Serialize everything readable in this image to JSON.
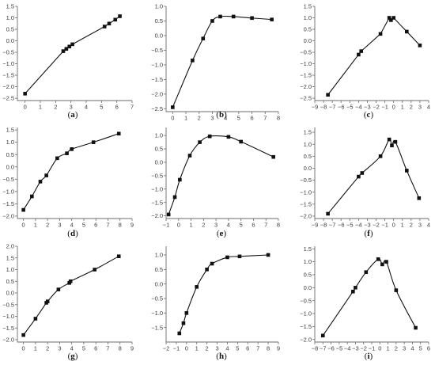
{
  "figure": {
    "background": "#ffffff",
    "ink": "#111111",
    "axis_color": "#6b6b6b"
  },
  "chart_data": [
    {
      "panel": "(a)",
      "label_letter": "a",
      "type": "line",
      "xlim": [
        -0.5,
        7
      ],
      "ylim": [
        -2.6,
        1.5
      ],
      "xticks": [
        0,
        1,
        2,
        3,
        4,
        5,
        6,
        7
      ],
      "yticks": [
        -2.5,
        -2.0,
        -1.5,
        -1.0,
        -0.5,
        0.0,
        0.5,
        1.0,
        1.5
      ],
      "grid": false,
      "smooth": false,
      "points": [
        [
          0,
          -2.3
        ],
        [
          2.5,
          -0.45
        ],
        [
          2.7,
          -0.35
        ],
        [
          2.9,
          -0.25
        ],
        [
          3.1,
          -0.15
        ],
        [
          5.2,
          0.62
        ],
        [
          5.5,
          0.75
        ],
        [
          5.9,
          0.92
        ],
        [
          6.2,
          1.07
        ]
      ]
    },
    {
      "panel": "(b)",
      "label_letter": "b",
      "type": "line",
      "xlim": [
        -0.5,
        8
      ],
      "ylim": [
        -2.6,
        1.0
      ],
      "xticks": [
        0,
        1,
        2,
        3,
        4,
        5,
        6,
        7,
        8
      ],
      "yticks": [
        -2.5,
        -2.0,
        -1.5,
        -1.0,
        -0.5,
        0.0,
        0.5,
        1.0
      ],
      "grid": false,
      "smooth": true,
      "points": [
        [
          0,
          -2.45
        ],
        [
          1.5,
          -0.85
        ],
        [
          2.3,
          -0.1
        ],
        [
          3.0,
          0.5
        ],
        [
          3.6,
          0.65
        ],
        [
          4.6,
          0.65
        ],
        [
          6.0,
          0.6
        ],
        [
          7.5,
          0.55
        ]
      ]
    },
    {
      "panel": "(c)",
      "label_letter": "c",
      "type": "line",
      "xlim": [
        -9,
        4
      ],
      "ylim": [
        -2.6,
        1.5
      ],
      "xticks": [
        -9,
        -8,
        -7,
        -6,
        -5,
        -4,
        -3,
        -2,
        -1,
        0,
        1,
        2,
        3,
        4
      ],
      "yticks": [
        -2.5,
        -2.0,
        -1.5,
        -1.0,
        -0.5,
        0.0,
        0.5,
        1.0,
        1.5
      ],
      "grid": false,
      "smooth": false,
      "points": [
        [
          -7.5,
          -2.35
        ],
        [
          -4.0,
          -0.6
        ],
        [
          -3.7,
          -0.45
        ],
        [
          -1.5,
          0.3
        ],
        [
          -0.5,
          1.0
        ],
        [
          -0.3,
          0.9
        ],
        [
          0.0,
          1.0
        ],
        [
          1.5,
          0.4
        ],
        [
          3.0,
          -0.2
        ]
      ]
    },
    {
      "panel": "(d)",
      "label_letter": "d",
      "type": "line",
      "xlim": [
        -0.5,
        9
      ],
      "ylim": [
        -2.1,
        1.6
      ],
      "xticks": [
        0,
        1,
        2,
        3,
        4,
        5,
        6,
        7,
        8,
        9
      ],
      "yticks": [
        -2.0,
        -1.5,
        -1.0,
        -0.5,
        0.0,
        0.5,
        1.0,
        1.5
      ],
      "grid": false,
      "smooth": true,
      "points": [
        [
          0,
          -1.75
        ],
        [
          0.7,
          -1.2
        ],
        [
          1.4,
          -0.6
        ],
        [
          1.9,
          -0.35
        ],
        [
          2.8,
          0.35
        ],
        [
          3.6,
          0.55
        ],
        [
          4.0,
          0.72
        ],
        [
          5.8,
          1.0
        ],
        [
          7.9,
          1.35
        ]
      ]
    },
    {
      "panel": "(e)",
      "label_letter": "e",
      "type": "line",
      "xlim": [
        -1,
        8
      ],
      "ylim": [
        -2.1,
        1.3
      ],
      "xticks": [
        -1,
        0,
        1,
        2,
        3,
        4,
        5,
        6,
        7,
        8
      ],
      "yticks": [
        -2.0,
        -1.5,
        -1.0,
        -0.5,
        0.0,
        0.5,
        1.0
      ],
      "grid": false,
      "smooth": true,
      "points": [
        [
          -0.8,
          -1.95
        ],
        [
          -0.3,
          -1.3
        ],
        [
          0.1,
          -0.65
        ],
        [
          0.9,
          0.25
        ],
        [
          1.7,
          0.75
        ],
        [
          2.5,
          0.97
        ],
        [
          4.0,
          0.95
        ],
        [
          5.0,
          0.77
        ],
        [
          7.6,
          0.2
        ]
      ]
    },
    {
      "panel": "(f)",
      "label_letter": "f",
      "type": "line",
      "xlim": [
        -9,
        4
      ],
      "ylim": [
        -2.1,
        1.7
      ],
      "xticks": [
        -9,
        -8,
        -7,
        -6,
        -5,
        -4,
        -3,
        -2,
        -1,
        0,
        1,
        2,
        3,
        4
      ],
      "yticks": [
        -2.0,
        -1.5,
        -1.0,
        -0.5,
        0.0,
        0.5,
        1.0,
        1.5
      ],
      "grid": false,
      "smooth": true,
      "points": [
        [
          -7.5,
          -1.9
        ],
        [
          -4.0,
          -0.35
        ],
        [
          -3.6,
          -0.2
        ],
        [
          -1.5,
          0.5
        ],
        [
          -0.5,
          1.2
        ],
        [
          -0.2,
          0.95
        ],
        [
          0.2,
          1.1
        ],
        [
          1.5,
          -0.1
        ],
        [
          2.9,
          -1.25
        ]
      ]
    },
    {
      "panel": "(g)",
      "label_letter": "g",
      "type": "line",
      "xlim": [
        -0.5,
        9
      ],
      "ylim": [
        -2.1,
        2.0
      ],
      "xticks": [
        0,
        1,
        2,
        3,
        4,
        5,
        6,
        7,
        8,
        9
      ],
      "yticks": [
        -2.0,
        -1.5,
        -1.0,
        -0.5,
        0.0,
        0.5,
        1.0,
        1.5,
        2.0
      ],
      "grid": false,
      "smooth": true,
      "points": [
        [
          0,
          -1.8
        ],
        [
          1.0,
          -1.1
        ],
        [
          1.9,
          -0.42
        ],
        [
          2.0,
          -0.36
        ],
        [
          2.9,
          0.15
        ],
        [
          3.8,
          0.43
        ],
        [
          3.9,
          0.5
        ],
        [
          5.9,
          1.0
        ],
        [
          7.9,
          1.57
        ]
      ]
    },
    {
      "panel": "(h)",
      "label_letter": "h",
      "type": "line",
      "xlim": [
        -2,
        9
      ],
      "ylim": [
        -2.0,
        1.3
      ],
      "xticks": [
        -2,
        -1,
        0,
        1,
        2,
        3,
        4,
        5,
        6,
        7,
        8,
        9
      ],
      "yticks": [
        -1.5,
        -1.0,
        -0.5,
        0.0,
        0.5,
        1.0
      ],
      "grid": false,
      "smooth": true,
      "points": [
        [
          -0.7,
          -1.7
        ],
        [
          -0.3,
          -1.35
        ],
        [
          0.0,
          -1.0
        ],
        [
          1.0,
          -0.1
        ],
        [
          2.0,
          0.5
        ],
        [
          2.5,
          0.7
        ],
        [
          4.0,
          0.92
        ],
        [
          5.2,
          0.95
        ],
        [
          8.0,
          1.0
        ]
      ]
    },
    {
      "panel": "(i)",
      "label_letter": "i",
      "type": "line",
      "xlim": [
        -8,
        6
      ],
      "ylim": [
        -2.1,
        1.6
      ],
      "xticks": [
        -8,
        -7,
        -6,
        -5,
        -4,
        -3,
        -2,
        -1,
        0,
        1,
        2,
        3,
        4,
        5,
        6
      ],
      "yticks": [
        -2.0,
        -1.5,
        -1.0,
        -0.5,
        0.0,
        0.5,
        1.0,
        1.5
      ],
      "grid": false,
      "smooth": true,
      "points": [
        [
          -7.0,
          -1.85
        ],
        [
          -3.3,
          -0.15
        ],
        [
          -3.0,
          0.0
        ],
        [
          -1.7,
          0.6
        ],
        [
          -0.2,
          1.1
        ],
        [
          0.3,
          0.9
        ],
        [
          0.8,
          1.0
        ],
        [
          2.0,
          -0.1
        ],
        [
          4.4,
          -1.55
        ]
      ]
    }
  ]
}
